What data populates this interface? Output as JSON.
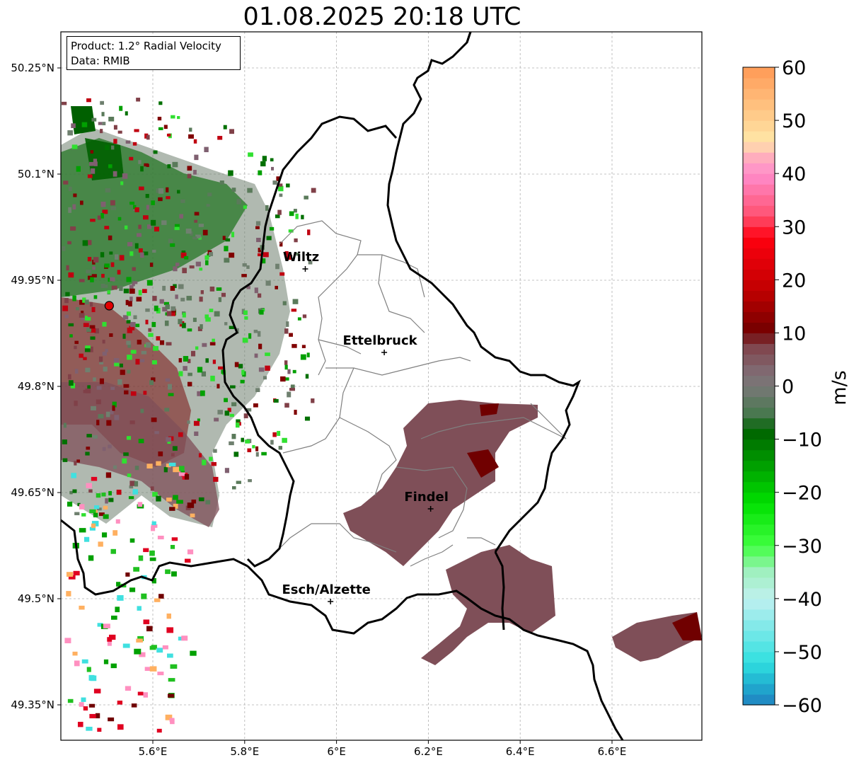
{
  "title": "01.08.2025 20:18 UTC",
  "info": {
    "product": "Product: 1.2° Radial Velocity",
    "data": "Data: RMIB"
  },
  "map": {
    "lon_range": [
      5.4,
      6.8
    ],
    "lat_range": [
      49.28,
      50.315
    ],
    "lat_ticks": [
      {
        "value": 50.25,
        "label": "50.25°N"
      },
      {
        "value": 50.1,
        "label": "50.1°N"
      },
      {
        "value": 49.95,
        "label": "49.95°N"
      },
      {
        "value": 49.8,
        "label": "49.8°N"
      },
      {
        "value": 49.65,
        "label": "49.65°N"
      },
      {
        "value": 49.5,
        "label": "49.5°N"
      },
      {
        "value": 49.35,
        "label": "49.35°N"
      }
    ],
    "lon_ticks": [
      {
        "value": 5.6,
        "label": "5.6°E"
      },
      {
        "value": 5.8,
        "label": "5.8°E"
      },
      {
        "value": 6.0,
        "label": "6°E"
      },
      {
        "value": 6.2,
        "label": "6.2°E"
      },
      {
        "value": 6.4,
        "label": "6.4°E"
      },
      {
        "value": 6.6,
        "label": "6.6°E"
      }
    ],
    "grid": true,
    "radar_site": {
      "lon": 5.505,
      "lat": 49.914
    },
    "cities": [
      {
        "name": "Wiltz",
        "lon": 5.932,
        "lat": 49.966
      },
      {
        "name": "Ettelbruck",
        "lon": 6.104,
        "lat": 49.848
      },
      {
        "name": "Findel",
        "lon": 6.205,
        "lat": 49.627
      },
      {
        "name": "Esch/Alzette",
        "lon": 5.987,
        "lat": 49.496
      }
    ]
  },
  "colorbar": {
    "label": "m/s",
    "min": -60,
    "max": 60,
    "ticks": [
      {
        "value": 60,
        "label": "60"
      },
      {
        "value": 50,
        "label": "50"
      },
      {
        "value": 40,
        "label": "40"
      },
      {
        "value": 30,
        "label": "30"
      },
      {
        "value": 20,
        "label": "20"
      },
      {
        "value": 10,
        "label": "10"
      },
      {
        "value": 0,
        "label": "0"
      },
      {
        "value": -10,
        "label": "−10"
      },
      {
        "value": -20,
        "label": "−20"
      },
      {
        "value": -30,
        "label": "−30"
      },
      {
        "value": -40,
        "label": "−40"
      },
      {
        "value": -50,
        "label": "−50"
      },
      {
        "value": -60,
        "label": "−60"
      }
    ],
    "stops": [
      {
        "v": 60,
        "color": "#ff9a55"
      },
      {
        "v": 50,
        "color": "#ffd090"
      },
      {
        "v": 46,
        "color": "#ffe8a8"
      },
      {
        "v": 44,
        "color": "#ffb8b8"
      },
      {
        "v": 40,
        "color": "#ff8ccc"
      },
      {
        "v": 32,
        "color": "#ff5070"
      },
      {
        "v": 28,
        "color": "#ff0010"
      },
      {
        "v": 18,
        "color": "#c00000"
      },
      {
        "v": 10,
        "color": "#700000"
      },
      {
        "v": 8,
        "color": "#804048"
      },
      {
        "v": 2,
        "color": "#807078"
      },
      {
        "v": -1,
        "color": "#707870"
      },
      {
        "v": -6,
        "color": "#407848"
      },
      {
        "v": -8,
        "color": "#006000"
      },
      {
        "v": -22,
        "color": "#00e000"
      },
      {
        "v": -30,
        "color": "#40ff40"
      },
      {
        "v": -35,
        "color": "#a0f0c0"
      },
      {
        "v": -40,
        "color": "#c0f0f0"
      },
      {
        "v": -52,
        "color": "#30e0e0"
      },
      {
        "v": -56,
        "color": "#20b0d0"
      },
      {
        "v": -60,
        "color": "#2080c0"
      }
    ]
  }
}
